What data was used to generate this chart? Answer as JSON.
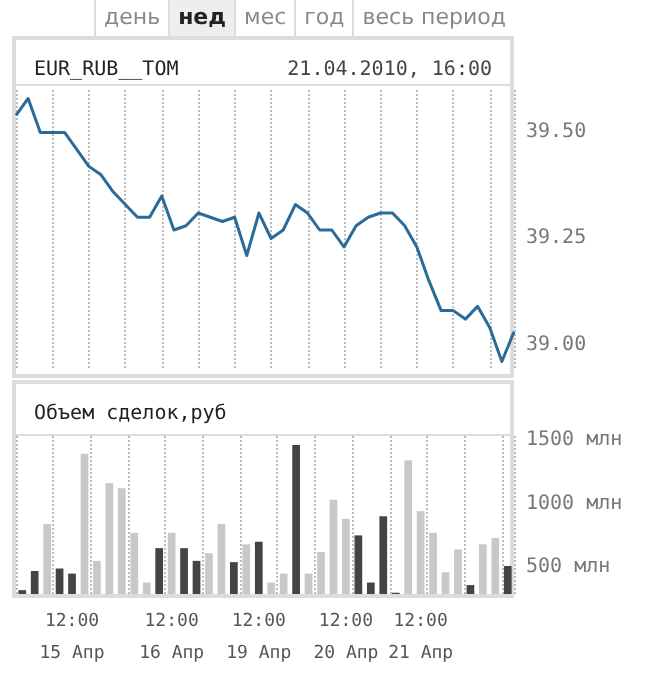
{
  "chart_data": [
    {
      "type": "line",
      "title": "EUR_RUB__TOM",
      "subtitle": "21.04.2010, 16:00",
      "annotations": [
        "день",
        "нед",
        "мес",
        "год",
        "весь период"
      ],
      "categories": [
        null,
        null,
        null,
        null,
        null,
        null,
        null,
        null,
        null,
        null,
        null,
        null,
        null,
        null,
        null,
        null,
        null,
        null,
        null,
        null,
        null,
        null,
        null,
        null,
        null,
        null,
        null,
        null,
        null,
        null,
        null,
        null,
        null,
        null,
        null,
        null,
        null,
        null,
        null,
        null,
        null,
        null
      ],
      "series": [
        {
          "color": "#2a6b9a",
          "values": [
            39.54,
            39.58,
            39.5,
            39.5,
            39.5,
            39.46,
            39.42,
            39.4,
            39.36,
            39.33,
            39.3,
            39.3,
            39.35,
            39.27,
            39.28,
            39.31,
            39.3,
            39.29,
            39.3,
            39.21,
            39.31,
            39.25,
            39.27,
            39.33,
            39.31,
            39.27,
            39.27,
            39.23,
            39.28,
            39.3,
            39.31,
            39.31,
            39.28,
            39.23,
            39.15,
            39.08,
            39.08,
            39.06,
            39.09,
            39.04,
            38.96,
            39.03
          ]
        }
      ],
      "ylim": [
        38.94,
        39.6
      ],
      "yticks": [
        {
          "value": 39,
          "label": "39.00"
        },
        {
          "value": 39.25,
          "label": "39.25"
        },
        {
          "value": 39.5,
          "label": "39.50"
        }
      ],
      "tick_labels": "y",
      "grid": "x",
      "line_style": "solid"
    },
    {
      "type": "bar",
      "title": "Объем сделок,руб",
      "categories": [
        null,
        null,
        null,
        null,
        "12:00\n15 Апр",
        null,
        null,
        null,
        null,
        null,
        null,
        null,
        "12:00\n16 Апр",
        null,
        null,
        null,
        null,
        null,
        null,
        "12:00\n19 Апр",
        null,
        null,
        null,
        null,
        null,
        null,
        "12:00\n20 Апр",
        null,
        null,
        null,
        null,
        null,
        "12:00\n21 Апр",
        null,
        null,
        null,
        null,
        null,
        null,
        null
      ],
      "values": [
        320,
        470,
        840,
        490,
        450,
        1390,
        550,
        1160,
        1120,
        770,
        380,
        650,
        770,
        650,
        550,
        610,
        840,
        540,
        680,
        700,
        380,
        450,
        1460,
        450,
        620,
        1030,
        880,
        750,
        380,
        900,
        300,
        1340,
        940,
        770,
        460,
        640,
        360,
        680,
        730,
        510
      ],
      "colors": [
        "#444444",
        "#444444",
        "#c8c8c8",
        "#444444",
        "#444444",
        "#c8c8c8",
        "#c8c8c8",
        "#c8c8c8",
        "#c8c8c8",
        "#c8c8c8",
        "#c8c8c8",
        "#444444",
        "#c8c8c8",
        "#444444",
        "#444444",
        "#c8c8c8",
        "#c8c8c8",
        "#444444",
        "#c8c8c8",
        "#444444",
        "#c8c8c8",
        "#c8c8c8",
        "#444444",
        "#c8c8c8",
        "#c8c8c8",
        "#c8c8c8",
        "#c8c8c8",
        "#444444",
        "#444444",
        "#444444",
        "#444444",
        "#c8c8c8",
        "#c8c8c8",
        "#c8c8c8",
        "#c8c8c8",
        "#c8c8c8",
        "#444444",
        "#c8c8c8",
        "#c8c8c8",
        "#444444"
      ],
      "ylim": [
        290,
        1530
      ],
      "yticks": [
        {
          "value": 500,
          "label": "500 млн"
        },
        {
          "value": 1000,
          "label": "1000 млн"
        },
        {
          "value": 1500,
          "label": "1500 млн"
        }
      ],
      "grid": "x"
    }
  ]
}
